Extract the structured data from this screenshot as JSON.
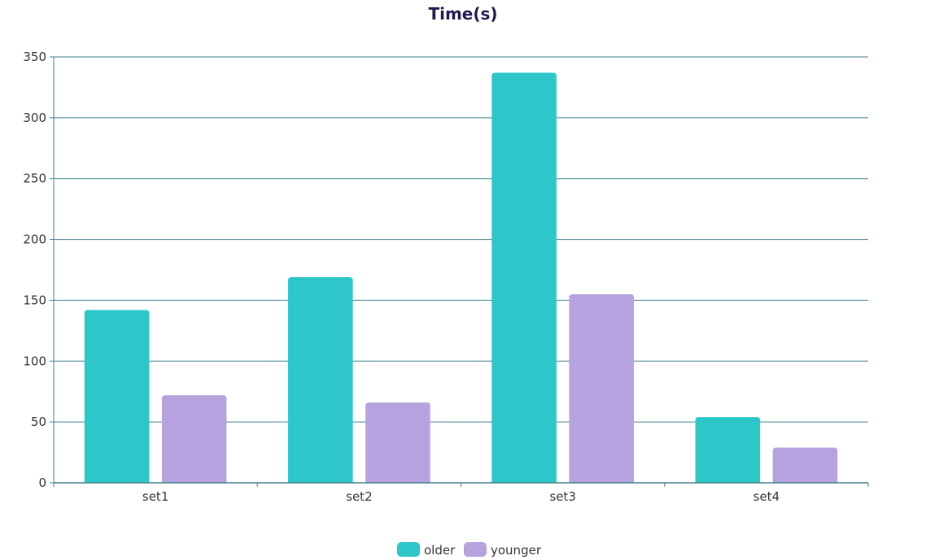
{
  "chart_data": {
    "type": "bar",
    "title": "Time(s)",
    "xlabel": "",
    "ylabel": "",
    "categories": [
      "set1",
      "set2",
      "set3",
      "set4"
    ],
    "ylim": [
      0,
      350
    ],
    "yticks": [
      0,
      50,
      100,
      150,
      200,
      250,
      300,
      350
    ],
    "grid": true,
    "legend_position": "bottom-center",
    "series": [
      {
        "name": "older",
        "color": "#2ec7c9",
        "values": [
          142,
          169,
          337,
          54
        ]
      },
      {
        "name": "younger",
        "color": "#b6a2de",
        "values": [
          72,
          66,
          155,
          29
        ]
      }
    ],
    "colors": {
      "axis": "#3f7f8a",
      "grid": "#3f7f8a",
      "title": "#1e1a4d",
      "tick_text": "#333333"
    }
  }
}
